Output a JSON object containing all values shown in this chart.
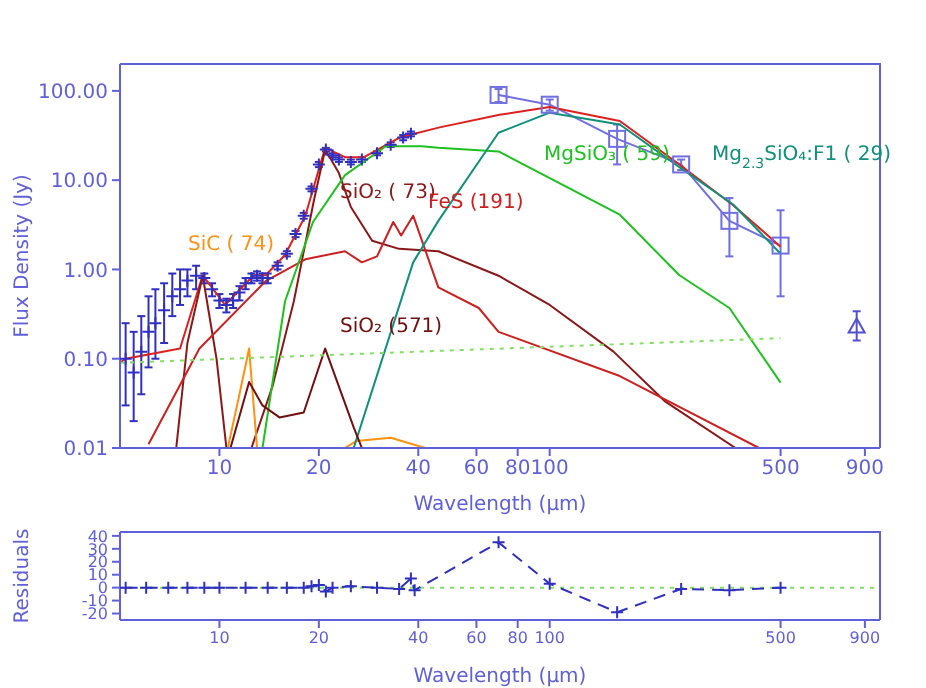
{
  "chart_data": [
    {
      "type": "line",
      "xlabel": "Wavelength (μm)",
      "ylabel": "Flux Density (Jy)",
      "log": "xy",
      "xlim": [
        5,
        1000
      ],
      "ylim": [
        0.01,
        200
      ],
      "xticks": [
        10,
        20,
        40,
        60,
        80,
        100,
        500,
        900
      ],
      "yticks": [
        {
          "value": 0.01,
          "label": "0.01"
        },
        {
          "value": 0.1,
          "label": "0.10"
        },
        {
          "value": 1,
          "label": "1.00"
        },
        {
          "value": 10,
          "label": "10.00"
        },
        {
          "value": 100,
          "label": "100.00"
        }
      ],
      "series": [
        {
          "type": "scatter",
          "marker": "cross",
          "color": "#3030c0",
          "x": [
            5.2,
            5.5,
            5.8,
            6.1,
            6.4,
            6.8,
            7.2,
            7.6,
            8.0,
            8.5,
            9.0,
            9.5,
            10.0,
            10.5,
            11.0,
            11.5,
            12.0,
            12.5,
            13.0,
            13.5,
            14,
            15,
            16,
            17,
            18,
            19,
            20,
            21,
            22,
            23,
            25,
            27,
            30,
            33,
            36,
            38
          ],
          "values": [
            0.1,
            0.07,
            0.12,
            0.2,
            0.25,
            0.35,
            0.5,
            0.6,
            0.75,
            0.85,
            0.8,
            0.6,
            0.45,
            0.4,
            0.45,
            0.55,
            0.7,
            0.8,
            0.85,
            0.8,
            0.8,
            1.1,
            1.5,
            2.5,
            4,
            8,
            15,
            22,
            19,
            17,
            16,
            17,
            20,
            25,
            30,
            33
          ],
          "errors": [
            [
              0.03,
              0.25
            ],
            [
              0.02,
              0.2
            ],
            [
              0.04,
              0.3
            ],
            [
              0.08,
              0.5
            ],
            [
              0.1,
              0.6
            ],
            [
              0.15,
              0.7
            ],
            [
              0.3,
              0.9
            ],
            [
              0.4,
              1.0
            ],
            [
              0.5,
              1.0
            ],
            [
              0.6,
              1.1
            ],
            0.1,
            0.1,
            0.08,
            0.07,
            0.08,
            0.1,
            0.1,
            0.1,
            0.1,
            0.1,
            0.1,
            0.1,
            0.1,
            0.2,
            0.3,
            0.5,
            1,
            1,
            1,
            1,
            1,
            1,
            1,
            1.5,
            2,
            2
          ]
        },
        {
          "type": "line",
          "marker": "square",
          "color": "#7070e0",
          "x": [
            70,
            100,
            160,
            250,
            350,
            500
          ],
          "values": [
            90,
            70,
            29,
            15,
            3.5,
            1.85
          ],
          "errors": [
            [
              75,
              105
            ],
            [
              60,
              80
            ],
            [
              15,
              42
            ],
            [
              13,
              17
            ],
            [
              1.4,
              6.3
            ],
            [
              0.5,
              4.6
            ]
          ]
        },
        {
          "type": "scatter",
          "marker": "triangle",
          "color": "#5050d0",
          "x": [
            850
          ],
          "values": [
            0.23
          ],
          "errors": [
            [
              0.16,
              0.34
            ]
          ]
        },
        {
          "type": "line",
          "marker": "none",
          "color": "#dd2020",
          "x": [
            5,
            5.2,
            7.6,
            8.9,
            10.4,
            12.7,
            13.8,
            15.8,
            18.2,
            20.9,
            24.1,
            27.3,
            35.1,
            46.4,
            70.5,
            100,
            163,
            247,
            360,
            500
          ],
          "values": [
            0.09,
            0.1,
            0.13,
            0.86,
            0.4,
            0.86,
            0.86,
            1.45,
            4.0,
            23,
            18,
            18,
            30,
            39,
            54,
            66,
            46,
            15,
            5.2,
            1.8
          ]
        },
        {
          "type": "line",
          "marker": "none",
          "name": "SiO₂ ( 73)",
          "color": "#8b1818",
          "x": [
            7.4,
            8.0,
            8.9,
            9.8,
            10.5,
            12.5,
            14.5,
            16.8,
            19.3,
            20.9,
            23,
            25,
            29,
            35,
            46,
            70,
            100,
            156,
            224,
            365
          ],
          "values": [
            0.01,
            0.15,
            0.85,
            0.1,
            0.01,
            0.01,
            0.05,
            0.44,
            5.8,
            22,
            12,
            5,
            2.1,
            1.7,
            1.6,
            0.85,
            0.4,
            0.12,
            0.033,
            0.01
          ]
        },
        {
          "type": "line",
          "marker": "none",
          "name": "FeS (191)",
          "color": "#cc2020",
          "x": [
            6.1,
            8.7,
            13.8,
            18.2,
            24,
            27,
            30,
            33.6,
            35.5,
            38.6,
            46,
            61,
            70,
            163,
            430
          ],
          "values": [
            0.011,
            0.13,
            0.74,
            1.3,
            1.6,
            1.2,
            1.4,
            3.4,
            2.4,
            4,
            0.63,
            0.37,
            0.2,
            0.064,
            0.01
          ]
        },
        {
          "type": "line",
          "marker": "none",
          "name": "SiC ( 74)",
          "color": "#ff9010",
          "x": [
            10.6,
            11.5,
            12.3,
            13.0,
            18,
            24,
            26,
            33,
            42
          ],
          "values": [
            0.01,
            0.04,
            0.13,
            0.01,
            null,
            0.01,
            0.012,
            0.013,
            0.01
          ]
        },
        {
          "type": "line",
          "marker": "none",
          "name": "MgSiO₃ ( 59)",
          "color": "#20c020",
          "x": [
            13.5,
            15.8,
            19.2,
            24,
            31.9,
            41,
            46,
            70,
            163,
            247,
            350,
            500
          ],
          "values": [
            0.01,
            0.44,
            3.4,
            11.4,
            24,
            24,
            23,
            21,
            4.1,
            0.86,
            0.37,
            0.054
          ]
        },
        {
          "type": "line",
          "marker": "none",
          "name": "Mg$_{2.3}$SiO₄:F1 ( 29)",
          "color": "#10907a",
          "x": [
            25.5,
            38.6,
            46,
            70,
            100,
            163,
            247,
            360,
            500
          ],
          "values": [
            0.01,
            1.2,
            3.5,
            34,
            57,
            42,
            14,
            5.3,
            1.5
          ]
        },
        {
          "type": "line",
          "marker": "none",
          "name": "SiO₂ (571)",
          "color": "#701010",
          "x": [
            10.8,
            12.3,
            13.5,
            15.2,
            18,
            20.9,
            25.5,
            27
          ],
          "values": [
            0.01,
            0.055,
            0.03,
            0.022,
            0.025,
            0.13,
            0.017,
            0.01
          ]
        },
        {
          "type": "line",
          "marker": "none",
          "line_style": "dotted",
          "color": "#80e060",
          "x": [
            5,
            500
          ],
          "values": [
            0.09,
            0.17
          ]
        }
      ]
    },
    {
      "type": "line",
      "xlabel": "Wavelength (μm)",
      "ylabel": "Residuals",
      "log": "x",
      "xlim": [
        5,
        1000
      ],
      "ylim": [
        -25,
        43
      ],
      "xticks": [
        10,
        20,
        40,
        60,
        80,
        100,
        500,
        900
      ],
      "yticks": [
        -20,
        -10,
        0,
        10,
        20,
        30,
        40
      ],
      "ref_lines": [
        {
          "axis": "y",
          "value": 0,
          "color": "#80e060",
          "line_style": "dotted"
        }
      ],
      "series": [
        {
          "type": "line",
          "marker": "cross",
          "line_style": "dashed",
          "color": "#3030c0",
          "x": [
            5.2,
            6,
            7,
            8,
            9,
            10,
            12,
            14,
            16,
            18,
            19,
            20,
            21,
            22,
            25,
            30,
            35,
            38,
            39,
            70,
            100,
            160,
            250,
            350,
            500
          ],
          "values": [
            0,
            0,
            0,
            0,
            0,
            0,
            0,
            0,
            0,
            0,
            1,
            2,
            -3,
            0,
            1,
            0,
            -1,
            7,
            -2,
            35,
            3,
            -19,
            -1,
            -2,
            0
          ]
        }
      ]
    }
  ]
}
